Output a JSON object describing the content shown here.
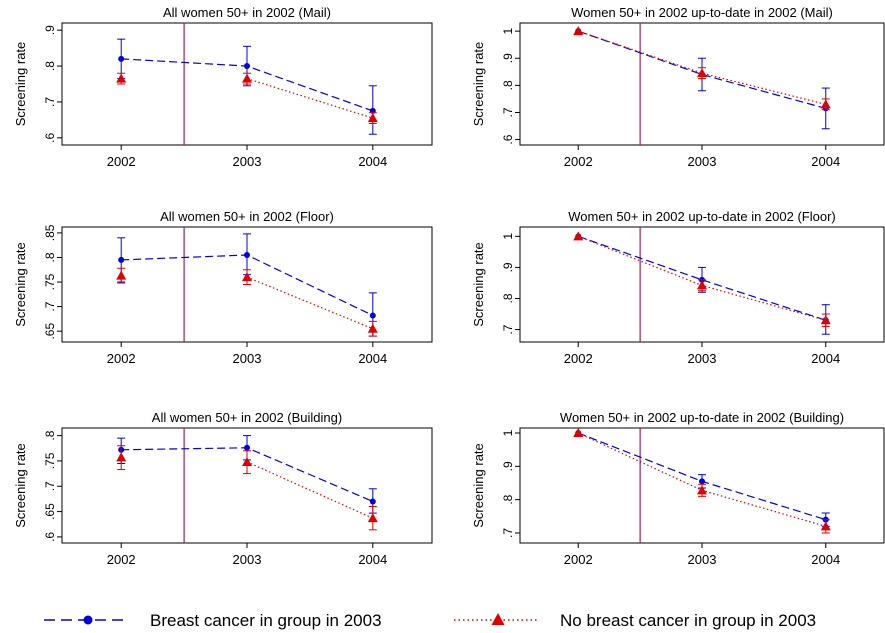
{
  "figure": {
    "legend": {
      "position": "bottom",
      "items": [
        {
          "label": "Breast cancer in group in 2003",
          "style": "dashed-circle",
          "color": "#0000e0"
        },
        {
          "label": "No breast cancer in group in 2003",
          "style": "dotted-triangle",
          "color": "#e00000"
        }
      ]
    },
    "colors": {
      "blue": "#0000e0",
      "red": "#e00000",
      "divider": "#a0205a"
    }
  },
  "chart_data": [
    {
      "type": "line",
      "title": "All women 50+ in 2002 (Mail)",
      "ylabel": "Screening rate",
      "xlabel": "",
      "categories": [
        "2002",
        "2003",
        "2004"
      ],
      "ylim": [
        0.58,
        0.92
      ],
      "yticks": [
        0.6,
        0.7,
        0.8,
        0.9
      ],
      "ytick_labels": [
        ".6",
        ".7",
        ".8",
        ".9"
      ],
      "vline_at": 2002.5,
      "series": [
        {
          "name": "Breast cancer in group in 2003",
          "values": [
            0.82,
            0.8,
            0.675
          ],
          "ci": [
            [
              0.765,
              0.875
            ],
            [
              0.745,
              0.855
            ],
            [
              0.61,
              0.745
            ]
          ]
        },
        {
          "name": "No breast cancer in group in 2003",
          "values": [
            0.765,
            0.765,
            0.655
          ],
          "ci": [
            [
              0.75,
              0.78
            ],
            [
              0.75,
              0.78
            ],
            [
              0.64,
              0.67
            ]
          ],
          "line_from": 1
        }
      ]
    },
    {
      "type": "line",
      "title": "Women 50+ in 2002 up-to-date in 2002 (Mail)",
      "ylabel": "Screening rate",
      "xlabel": "",
      "categories": [
        "2002",
        "2003",
        "2004"
      ],
      "ylim": [
        0.58,
        1.03
      ],
      "yticks": [
        0.6,
        0.7,
        0.8,
        0.9,
        1.0
      ],
      "ytick_labels": [
        ".6",
        ".7",
        ".8",
        ".9",
        "1"
      ],
      "vline_at": 2002.5,
      "series": [
        {
          "name": "Breast cancer in group in 2003",
          "values": [
            1.0,
            0.84,
            0.715
          ],
          "ci": [
            [
              1.0,
              1.0
            ],
            [
              0.78,
              0.9
            ],
            [
              0.64,
              0.79
            ]
          ]
        },
        {
          "name": "No breast cancer in group in 2003",
          "values": [
            1.0,
            0.845,
            0.73
          ],
          "ci": [
            [
              1.0,
              1.0
            ],
            [
              0.825,
              0.865
            ],
            [
              0.71,
              0.75
            ]
          ]
        }
      ]
    },
    {
      "type": "line",
      "title": "All women 50+ in 2002 (Floor)",
      "ylabel": "Screening rate",
      "xlabel": "",
      "categories": [
        "2002",
        "2003",
        "2004"
      ],
      "ylim": [
        0.628,
        0.862
      ],
      "yticks": [
        0.65,
        0.7,
        0.75,
        0.8,
        0.85
      ],
      "ytick_labels": [
        ".65",
        ".7",
        ".75",
        ".8",
        ".85"
      ],
      "vline_at": 2002.5,
      "series": [
        {
          "name": "Breast cancer in group in 2003",
          "values": [
            0.795,
            0.805,
            0.682
          ],
          "ci": [
            [
              0.75,
              0.84
            ],
            [
              0.765,
              0.848
            ],
            [
              0.64,
              0.728
            ]
          ]
        },
        {
          "name": "No breast cancer in group in 2003",
          "values": [
            0.763,
            0.76,
            0.655
          ],
          "ci": [
            [
              0.748,
              0.778
            ],
            [
              0.745,
              0.775
            ],
            [
              0.64,
              0.67
            ]
          ],
          "line_from": 1
        }
      ]
    },
    {
      "type": "line",
      "title": "Women 50+ in 2002 up-to-date in 2002 (Floor)",
      "ylabel": "Screening rate",
      "xlabel": "",
      "categories": [
        "2002",
        "2003",
        "2004"
      ],
      "ylim": [
        0.66,
        1.03
      ],
      "yticks": [
        0.7,
        0.8,
        0.9,
        1.0
      ],
      "ytick_labels": [
        ".7",
        ".8",
        ".9",
        "1"
      ],
      "vline_at": 2002.5,
      "series": [
        {
          "name": "Breast cancer in group in 2003",
          "values": [
            1.0,
            0.86,
            0.73
          ],
          "ci": [
            [
              1.0,
              1.0
            ],
            [
              0.82,
              0.9
            ],
            [
              0.685,
              0.78
            ]
          ]
        },
        {
          "name": "No breast cancer in group in 2003",
          "values": [
            1.0,
            0.842,
            0.73
          ],
          "ci": [
            [
              1.0,
              1.0
            ],
            [
              0.825,
              0.86
            ],
            [
              0.71,
              0.75
            ]
          ]
        }
      ]
    },
    {
      "type": "line",
      "title": "All women 50+ in 2002 (Building)",
      "ylabel": "Screening rate",
      "xlabel": "",
      "categories": [
        "2002",
        "2003",
        "2004"
      ],
      "ylim": [
        0.588,
        0.815
      ],
      "yticks": [
        0.6,
        0.65,
        0.7,
        0.75,
        0.8
      ],
      "ytick_labels": [
        ".6",
        ".65",
        ".7",
        ".75",
        ".8"
      ],
      "vline_at": 2002.5,
      "series": [
        {
          "name": "Breast cancer in group in 2003",
          "values": [
            0.772,
            0.776,
            0.67
          ],
          "ci": [
            [
              0.745,
              0.795
            ],
            [
              0.752,
              0.8
            ],
            [
              0.647,
              0.695
            ]
          ]
        },
        {
          "name": "No breast cancer in group in 2003",
          "values": [
            0.757,
            0.748,
            0.637
          ],
          "ci": [
            [
              0.733,
              0.78
            ],
            [
              0.725,
              0.77
            ],
            [
              0.614,
              0.66
            ]
          ],
          "line_from": 1
        }
      ]
    },
    {
      "type": "line",
      "title": "Women 50+ in 2002 up-to-date in 2002 (Building)",
      "ylabel": "Screening rate",
      "xlabel": "",
      "categories": [
        "2002",
        "2003",
        "2004"
      ],
      "ylim": [
        0.67,
        1.015
      ],
      "yticks": [
        0.7,
        0.8,
        0.9,
        1.0
      ],
      "ytick_labels": [
        ".7",
        ".8",
        ".9",
        "1"
      ],
      "vline_at": 2002.5,
      "series": [
        {
          "name": "Breast cancer in group in 2003",
          "values": [
            1.0,
            0.855,
            0.74
          ],
          "ci": [
            [
              1.0,
              1.0
            ],
            [
              0.835,
              0.875
            ],
            [
              0.72,
              0.76
            ]
          ]
        },
        {
          "name": "No breast cancer in group in 2003",
          "values": [
            1.0,
            0.828,
            0.72
          ],
          "ci": [
            [
              1.0,
              1.0
            ],
            [
              0.81,
              0.846
            ],
            [
              0.7,
              0.74
            ]
          ]
        }
      ]
    }
  ]
}
